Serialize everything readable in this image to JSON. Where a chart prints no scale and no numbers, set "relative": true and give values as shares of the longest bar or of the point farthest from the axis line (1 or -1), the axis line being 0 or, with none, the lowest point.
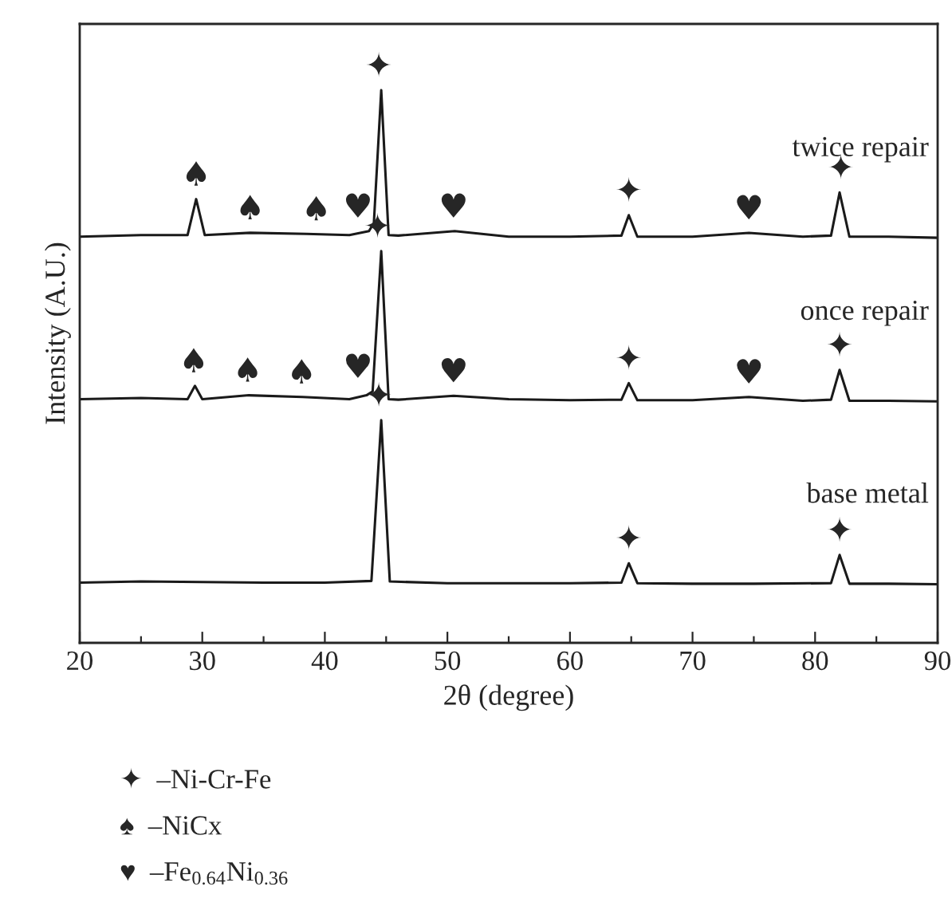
{
  "chart_data": {
    "type": "line",
    "relative": true,
    "xlabel": "2θ (degree)",
    "ylabel": "Intensity (A.U.)",
    "xlim": [
      20,
      90
    ],
    "xticks": [
      20,
      {
        "value": 25,
        "label": null
      },
      30,
      {
        "value": 35,
        "label": null
      },
      40,
      {
        "value": 45,
        "label": null
      },
      50,
      {
        "value": 55,
        "label": null
      },
      60,
      {
        "value": 65,
        "label": null
      },
      70,
      {
        "value": 75,
        "label": null
      },
      80,
      {
        "value": 85,
        "label": null
      },
      90
    ],
    "tick_labels": "x",
    "legend": false,
    "grid": false,
    "marker": "none",
    "line_style": "solid",
    "series": [
      {
        "name": "twice repair",
        "color": "#1a1a1a",
        "x": [
          20,
          25,
          28.8,
          29.5,
          30.2,
          33.9,
          38.5,
          42,
          43.6,
          44.0,
          44.6,
          45.2,
          46,
          50.6,
          55,
          60,
          64.2,
          64.8,
          65.5,
          70,
          74.6,
          79,
          81.3,
          82.0,
          82.8,
          86,
          90
        ],
        "values": [
          0.735,
          0.738,
          0.738,
          0.803,
          0.738,
          0.742,
          0.74,
          0.738,
          0.745,
          0.76,
          1.0,
          0.738,
          0.737,
          0.745,
          0.735,
          0.735,
          0.737,
          0.774,
          0.735,
          0.735,
          0.742,
          0.735,
          0.737,
          0.815,
          0.735,
          0.735,
          0.733
        ]
      },
      {
        "name": "once repair",
        "color": "#1a1a1a",
        "x": [
          20,
          25,
          28.8,
          29.4,
          30.0,
          33.8,
          38.2,
          42,
          43.4,
          43.9,
          44.6,
          45.2,
          46,
          50.5,
          55,
          60,
          64.2,
          64.8,
          65.5,
          70,
          74.6,
          79,
          81.3,
          82.0,
          82.8,
          86,
          90
        ],
        "values": [
          0.441,
          0.443,
          0.441,
          0.465,
          0.441,
          0.448,
          0.445,
          0.441,
          0.448,
          0.455,
          0.709,
          0.441,
          0.44,
          0.447,
          0.441,
          0.439,
          0.44,
          0.47,
          0.439,
          0.439,
          0.445,
          0.438,
          0.44,
          0.494,
          0.438,
          0.438,
          0.437
        ]
      },
      {
        "name": "base metal",
        "color": "#1a1a1a",
        "x": [
          20,
          25,
          30,
          35,
          40,
          43.8,
          44.6,
          45.3,
          50,
          55,
          60,
          64.2,
          64.8,
          65.5,
          70,
          75,
          81.3,
          82.0,
          82.8,
          86,
          90
        ],
        "values": [
          0.109,
          0.111,
          0.11,
          0.109,
          0.109,
          0.112,
          0.403,
          0.111,
          0.108,
          0.108,
          0.108,
          0.109,
          0.144,
          0.108,
          0.107,
          0.107,
          0.108,
          0.159,
          0.107,
          0.107,
          0.106
        ]
      }
    ],
    "annotations": [
      {
        "text": "♠",
        "x": 29.5,
        "y": 0.803
      },
      {
        "text": "♠",
        "x": 33.9,
        "y": 0.742
      },
      {
        "text": "♠",
        "x": 39.3,
        "y": 0.74
      },
      {
        "text": "♥",
        "x": 42.7,
        "y": 0.745
      },
      {
        "text": "✦",
        "x": 44.4,
        "y": 1.0
      },
      {
        "text": "♥",
        "x": 50.5,
        "y": 0.745
      },
      {
        "text": "✦",
        "x": 64.8,
        "y": 0.774
      },
      {
        "text": "♥",
        "x": 74.6,
        "y": 0.742
      },
      {
        "text": "✦",
        "x": 82.1,
        "y": 0.815
      },
      {
        "text": "♠",
        "x": 29.3,
        "y": 0.465
      },
      {
        "text": "♠",
        "x": 33.7,
        "y": 0.448
      },
      {
        "text": "♠",
        "x": 38.1,
        "y": 0.445
      },
      {
        "text": "♥",
        "x": 42.7,
        "y": 0.455
      },
      {
        "text": "✦",
        "x": 44.3,
        "y": 0.709
      },
      {
        "text": "♥",
        "x": 50.5,
        "y": 0.447
      },
      {
        "text": "✦",
        "x": 64.8,
        "y": 0.47
      },
      {
        "text": "♥",
        "x": 74.6,
        "y": 0.445
      },
      {
        "text": "✦",
        "x": 82.0,
        "y": 0.494
      },
      {
        "text": "✦",
        "x": 44.4,
        "y": 0.403
      },
      {
        "text": "✦",
        "x": 64.8,
        "y": 0.144
      },
      {
        "text": "✦",
        "x": 82.0,
        "y": 0.159
      },
      "✦  –Ni-Cr-Fe",
      "♠  –NiCx",
      "♥  –Fe$_{0.64}$Ni$_{0.36}$"
    ]
  }
}
